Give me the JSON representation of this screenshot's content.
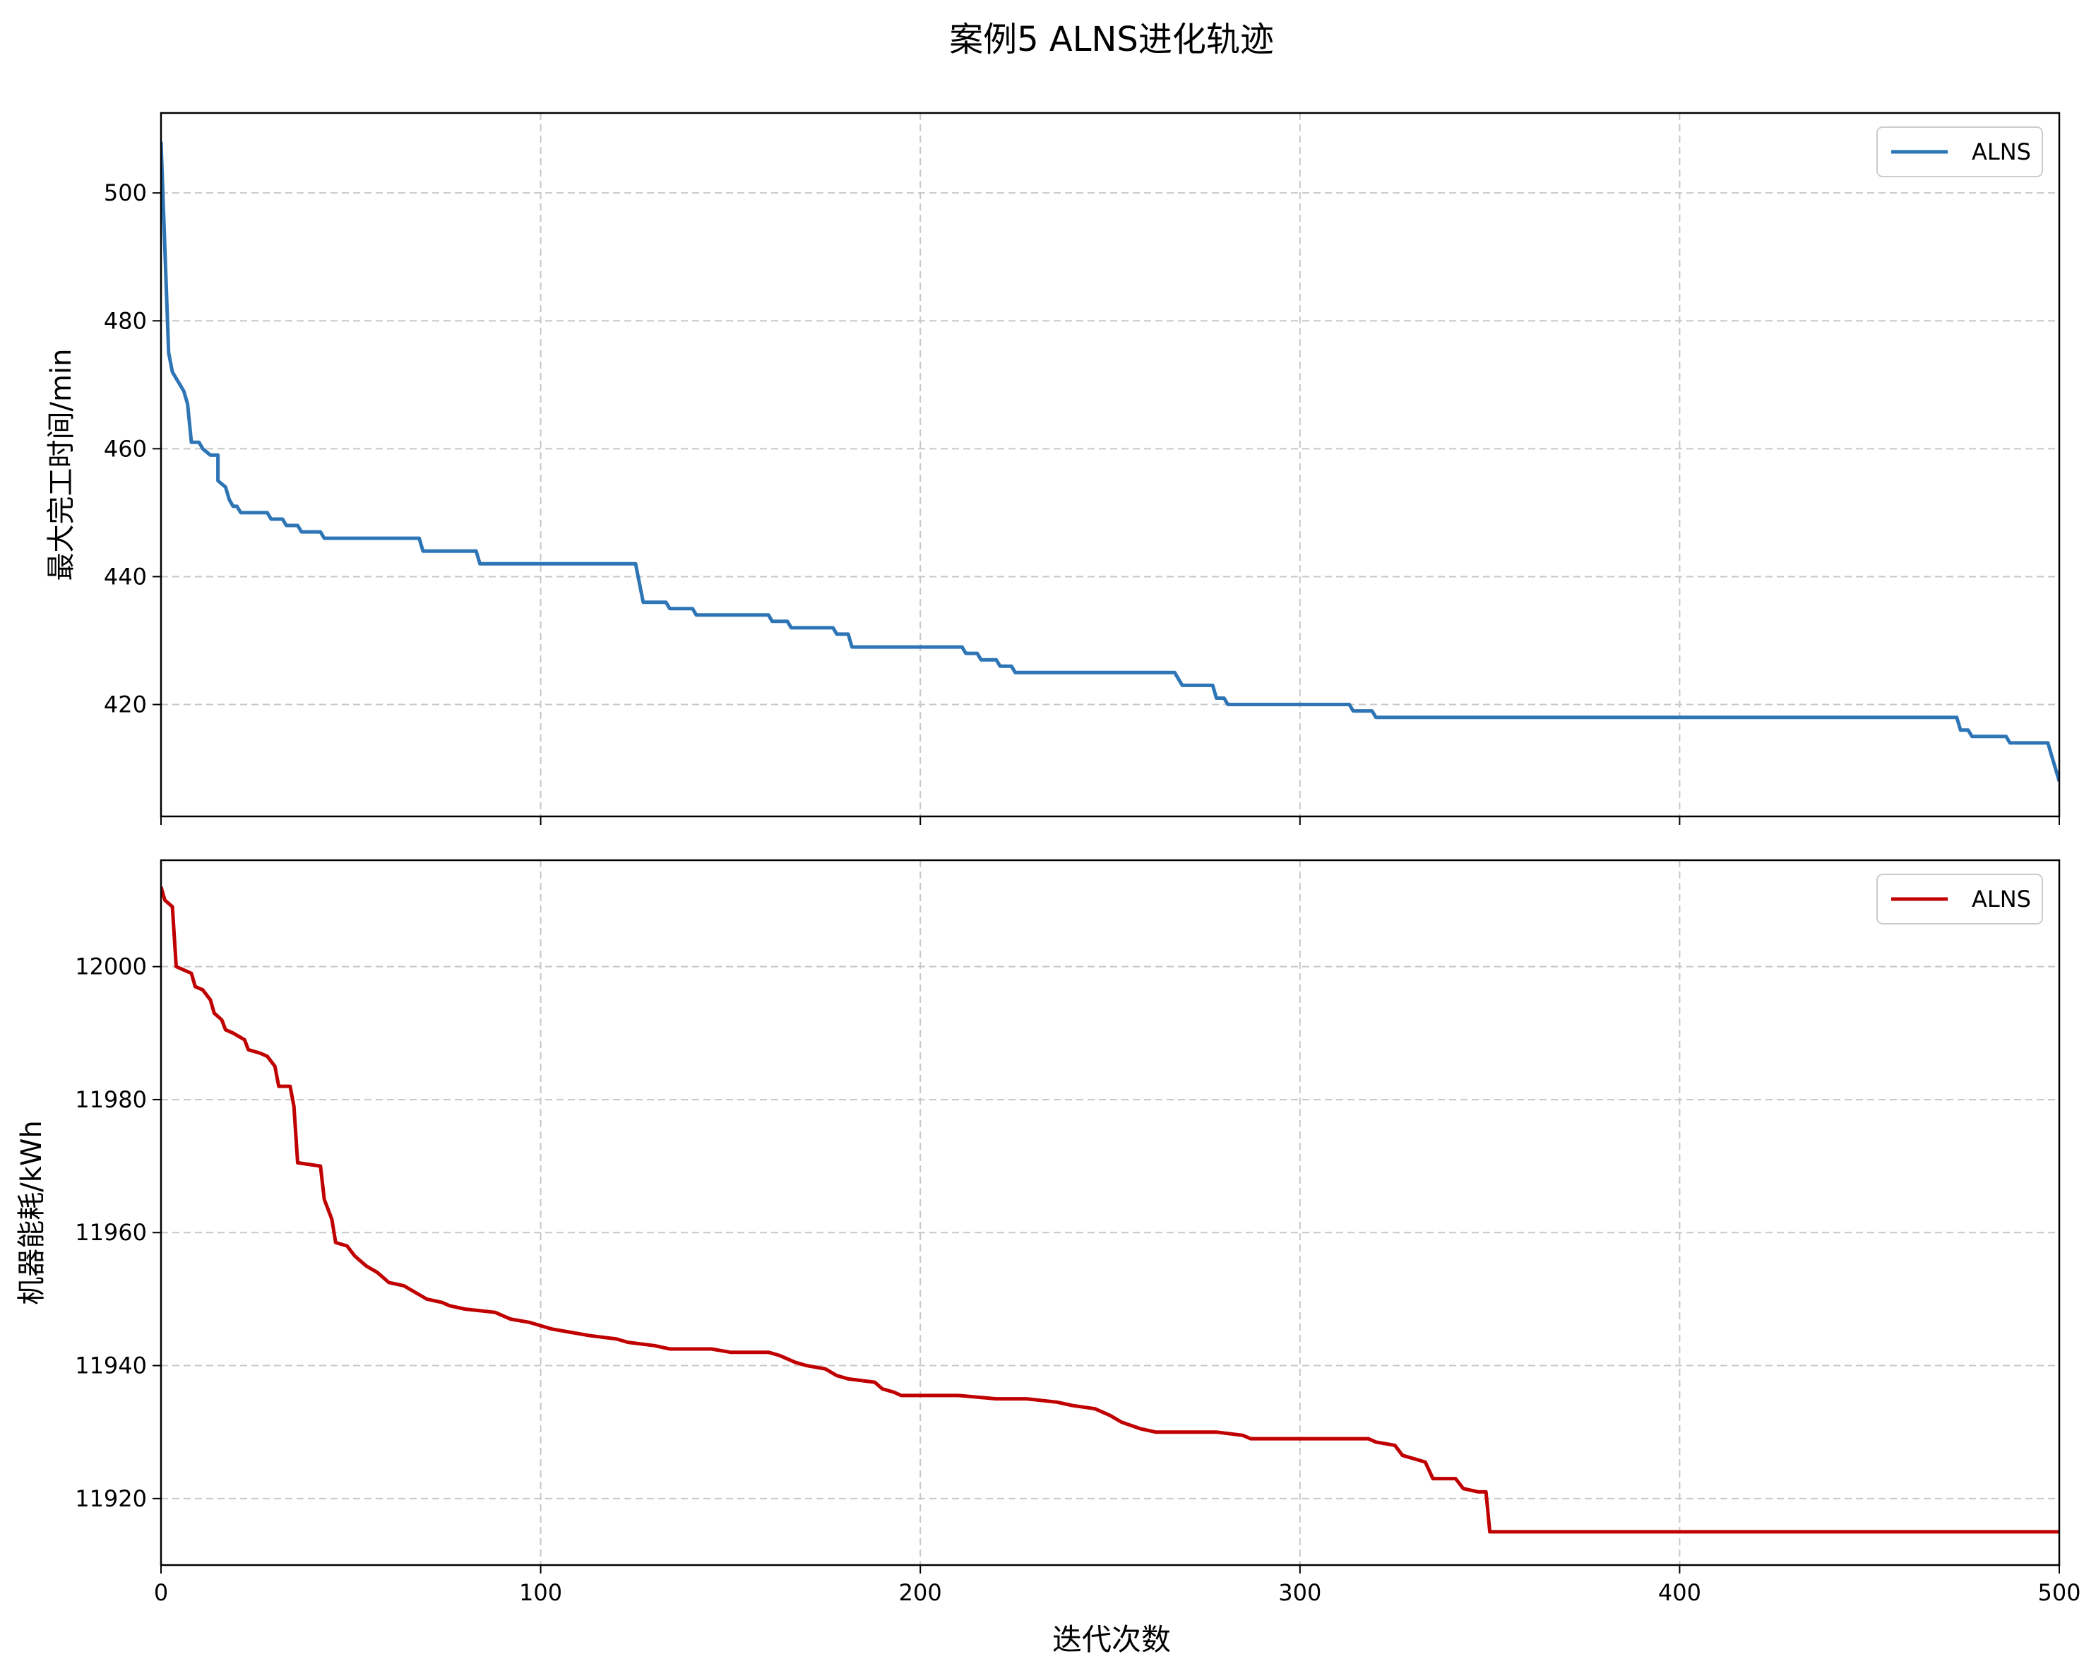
{
  "figure": {
    "title": "案例5 ALNS进化轨迹",
    "xlabel": "迭代次数"
  },
  "chart_data": [
    {
      "type": "line",
      "ylabel": "最大完工时间/min",
      "xlim": [
        0,
        500
      ],
      "ylim": [
        402.5,
        512.5
      ],
      "xticks": [
        0,
        100,
        200,
        300,
        400,
        500
      ],
      "yticks": [
        420,
        440,
        460,
        480,
        500
      ],
      "grid": true,
      "legend": "top-right",
      "color": "#2e75b6",
      "series": [
        {
          "name": "ALNS",
          "points": [
            [
              0,
              508
            ],
            [
              2,
              475
            ],
            [
              3,
              472
            ],
            [
              6,
              469
            ],
            [
              7,
              467
            ],
            [
              8,
              461
            ],
            [
              10,
              461
            ],
            [
              11,
              460
            ],
            [
              13,
              459
            ],
            [
              15,
              459
            ],
            [
              15,
              455
            ],
            [
              17,
              454
            ],
            [
              18,
              452
            ],
            [
              19,
              451
            ],
            [
              20,
              451
            ],
            [
              21,
              450
            ],
            [
              28,
              450
            ],
            [
              29,
              449
            ],
            [
              32,
              449
            ],
            [
              33,
              448
            ],
            [
              36,
              448
            ],
            [
              37,
              447
            ],
            [
              42,
              447
            ],
            [
              43,
              446
            ],
            [
              68,
              446
            ],
            [
              69,
              444
            ],
            [
              83,
              444
            ],
            [
              84,
              442
            ],
            [
              125,
              442
            ],
            [
              127,
              436
            ],
            [
              133,
              436
            ],
            [
              134,
              435
            ],
            [
              140,
              435
            ],
            [
              141,
              434
            ],
            [
              160,
              434
            ],
            [
              161,
              433
            ],
            [
              165,
              433
            ],
            [
              166,
              432
            ],
            [
              177,
              432
            ],
            [
              178,
              431
            ],
            [
              181,
              431
            ],
            [
              182,
              429
            ],
            [
              211,
              429
            ],
            [
              212,
              428
            ],
            [
              215,
              428
            ],
            [
              216,
              427
            ],
            [
              220,
              427
            ],
            [
              221,
              426
            ],
            [
              224,
              426
            ],
            [
              225,
              425
            ],
            [
              267,
              425
            ],
            [
              269,
              423
            ],
            [
              277,
              423
            ],
            [
              278,
              421
            ],
            [
              280,
              421
            ],
            [
              281,
              420
            ],
            [
              313,
              420
            ],
            [
              314,
              419
            ],
            [
              319,
              419
            ],
            [
              320,
              418
            ],
            [
              473,
              418
            ],
            [
              474,
              416
            ],
            [
              476,
              416
            ],
            [
              477,
              415
            ],
            [
              486,
              415
            ],
            [
              487,
              414
            ],
            [
              497,
              414
            ],
            [
              498,
              412
            ],
            [
              499,
              410
            ],
            [
              500,
              408
            ]
          ]
        }
      ]
    },
    {
      "type": "line",
      "ylabel": "机器能耗/kWh",
      "xlim": [
        0,
        500
      ],
      "ylim": [
        11910,
        12016
      ],
      "xticks": [
        0,
        100,
        200,
        300,
        400,
        500
      ],
      "yticks": [
        11920,
        11940,
        11960,
        11980,
        12000
      ],
      "grid": true,
      "legend": "top-right",
      "color": "#c00000",
      "series": [
        {
          "name": "ALNS",
          "points": [
            [
              0,
              12012
            ],
            [
              1,
              12010
            ],
            [
              3,
              12009
            ],
            [
              4,
              12000
            ],
            [
              8,
              11999
            ],
            [
              9,
              11997
            ],
            [
              11,
              11996.5
            ],
            [
              13,
              11995
            ],
            [
              14,
              11993
            ],
            [
              16,
              11992
            ],
            [
              17,
              11990.5
            ],
            [
              19,
              11990
            ],
            [
              22,
              11989
            ],
            [
              23,
              11987.5
            ],
            [
              26,
              11987
            ],
            [
              28,
              11986.5
            ],
            [
              30,
              11985
            ],
            [
              31,
              11982
            ],
            [
              34,
              11982
            ],
            [
              35,
              11979
            ],
            [
              36,
              11970.5
            ],
            [
              42,
              11970
            ],
            [
              43,
              11965
            ],
            [
              45,
              11962
            ],
            [
              46,
              11958.5
            ],
            [
              49,
              11958
            ],
            [
              51,
              11956.5
            ],
            [
              54,
              11955
            ],
            [
              57,
              11954
            ],
            [
              60,
              11952.5
            ],
            [
              64,
              11952
            ],
            [
              67,
              11951
            ],
            [
              70,
              11950
            ],
            [
              74,
              11949.5
            ],
            [
              76,
              11949
            ],
            [
              80,
              11948.5
            ],
            [
              88,
              11948
            ],
            [
              92,
              11947
            ],
            [
              97,
              11946.5
            ],
            [
              100,
              11946
            ],
            [
              103,
              11945.5
            ],
            [
              108,
              11945
            ],
            [
              113,
              11944.5
            ],
            [
              120,
              11944
            ],
            [
              123,
              11943.5
            ],
            [
              130,
              11943
            ],
            [
              134,
              11942.5
            ],
            [
              145,
              11942.5
            ],
            [
              150,
              11942
            ],
            [
              160,
              11942
            ],
            [
              163,
              11941.5
            ],
            [
              167,
              11940.5
            ],
            [
              170,
              11940
            ],
            [
              175,
              11939.5
            ],
            [
              178,
              11938.5
            ],
            [
              181,
              11938
            ],
            [
              188,
              11937.5
            ],
            [
              190,
              11936.5
            ],
            [
              193,
              11936
            ],
            [
              195,
              11935.5
            ],
            [
              210,
              11935.5
            ],
            [
              220,
              11935
            ],
            [
              228,
              11935
            ],
            [
              236,
              11934.5
            ],
            [
              240,
              11934
            ],
            [
              246,
              11933.5
            ],
            [
              250,
              11932.5
            ],
            [
              253,
              11931.5
            ],
            [
              258,
              11930.5
            ],
            [
              262,
              11930
            ],
            [
              278,
              11930
            ],
            [
              285,
              11929.5
            ],
            [
              287,
              11929
            ],
            [
              318,
              11929
            ],
            [
              320,
              11928.5
            ],
            [
              325,
              11928
            ],
            [
              327,
              11926.5
            ],
            [
              333,
              11925.5
            ],
            [
              335,
              11923
            ],
            [
              341,
              11923
            ],
            [
              343,
              11921.5
            ],
            [
              347,
              11921
            ],
            [
              349,
              11921
            ],
            [
              350,
              11915
            ],
            [
              500,
              11915
            ]
          ]
        }
      ]
    }
  ]
}
